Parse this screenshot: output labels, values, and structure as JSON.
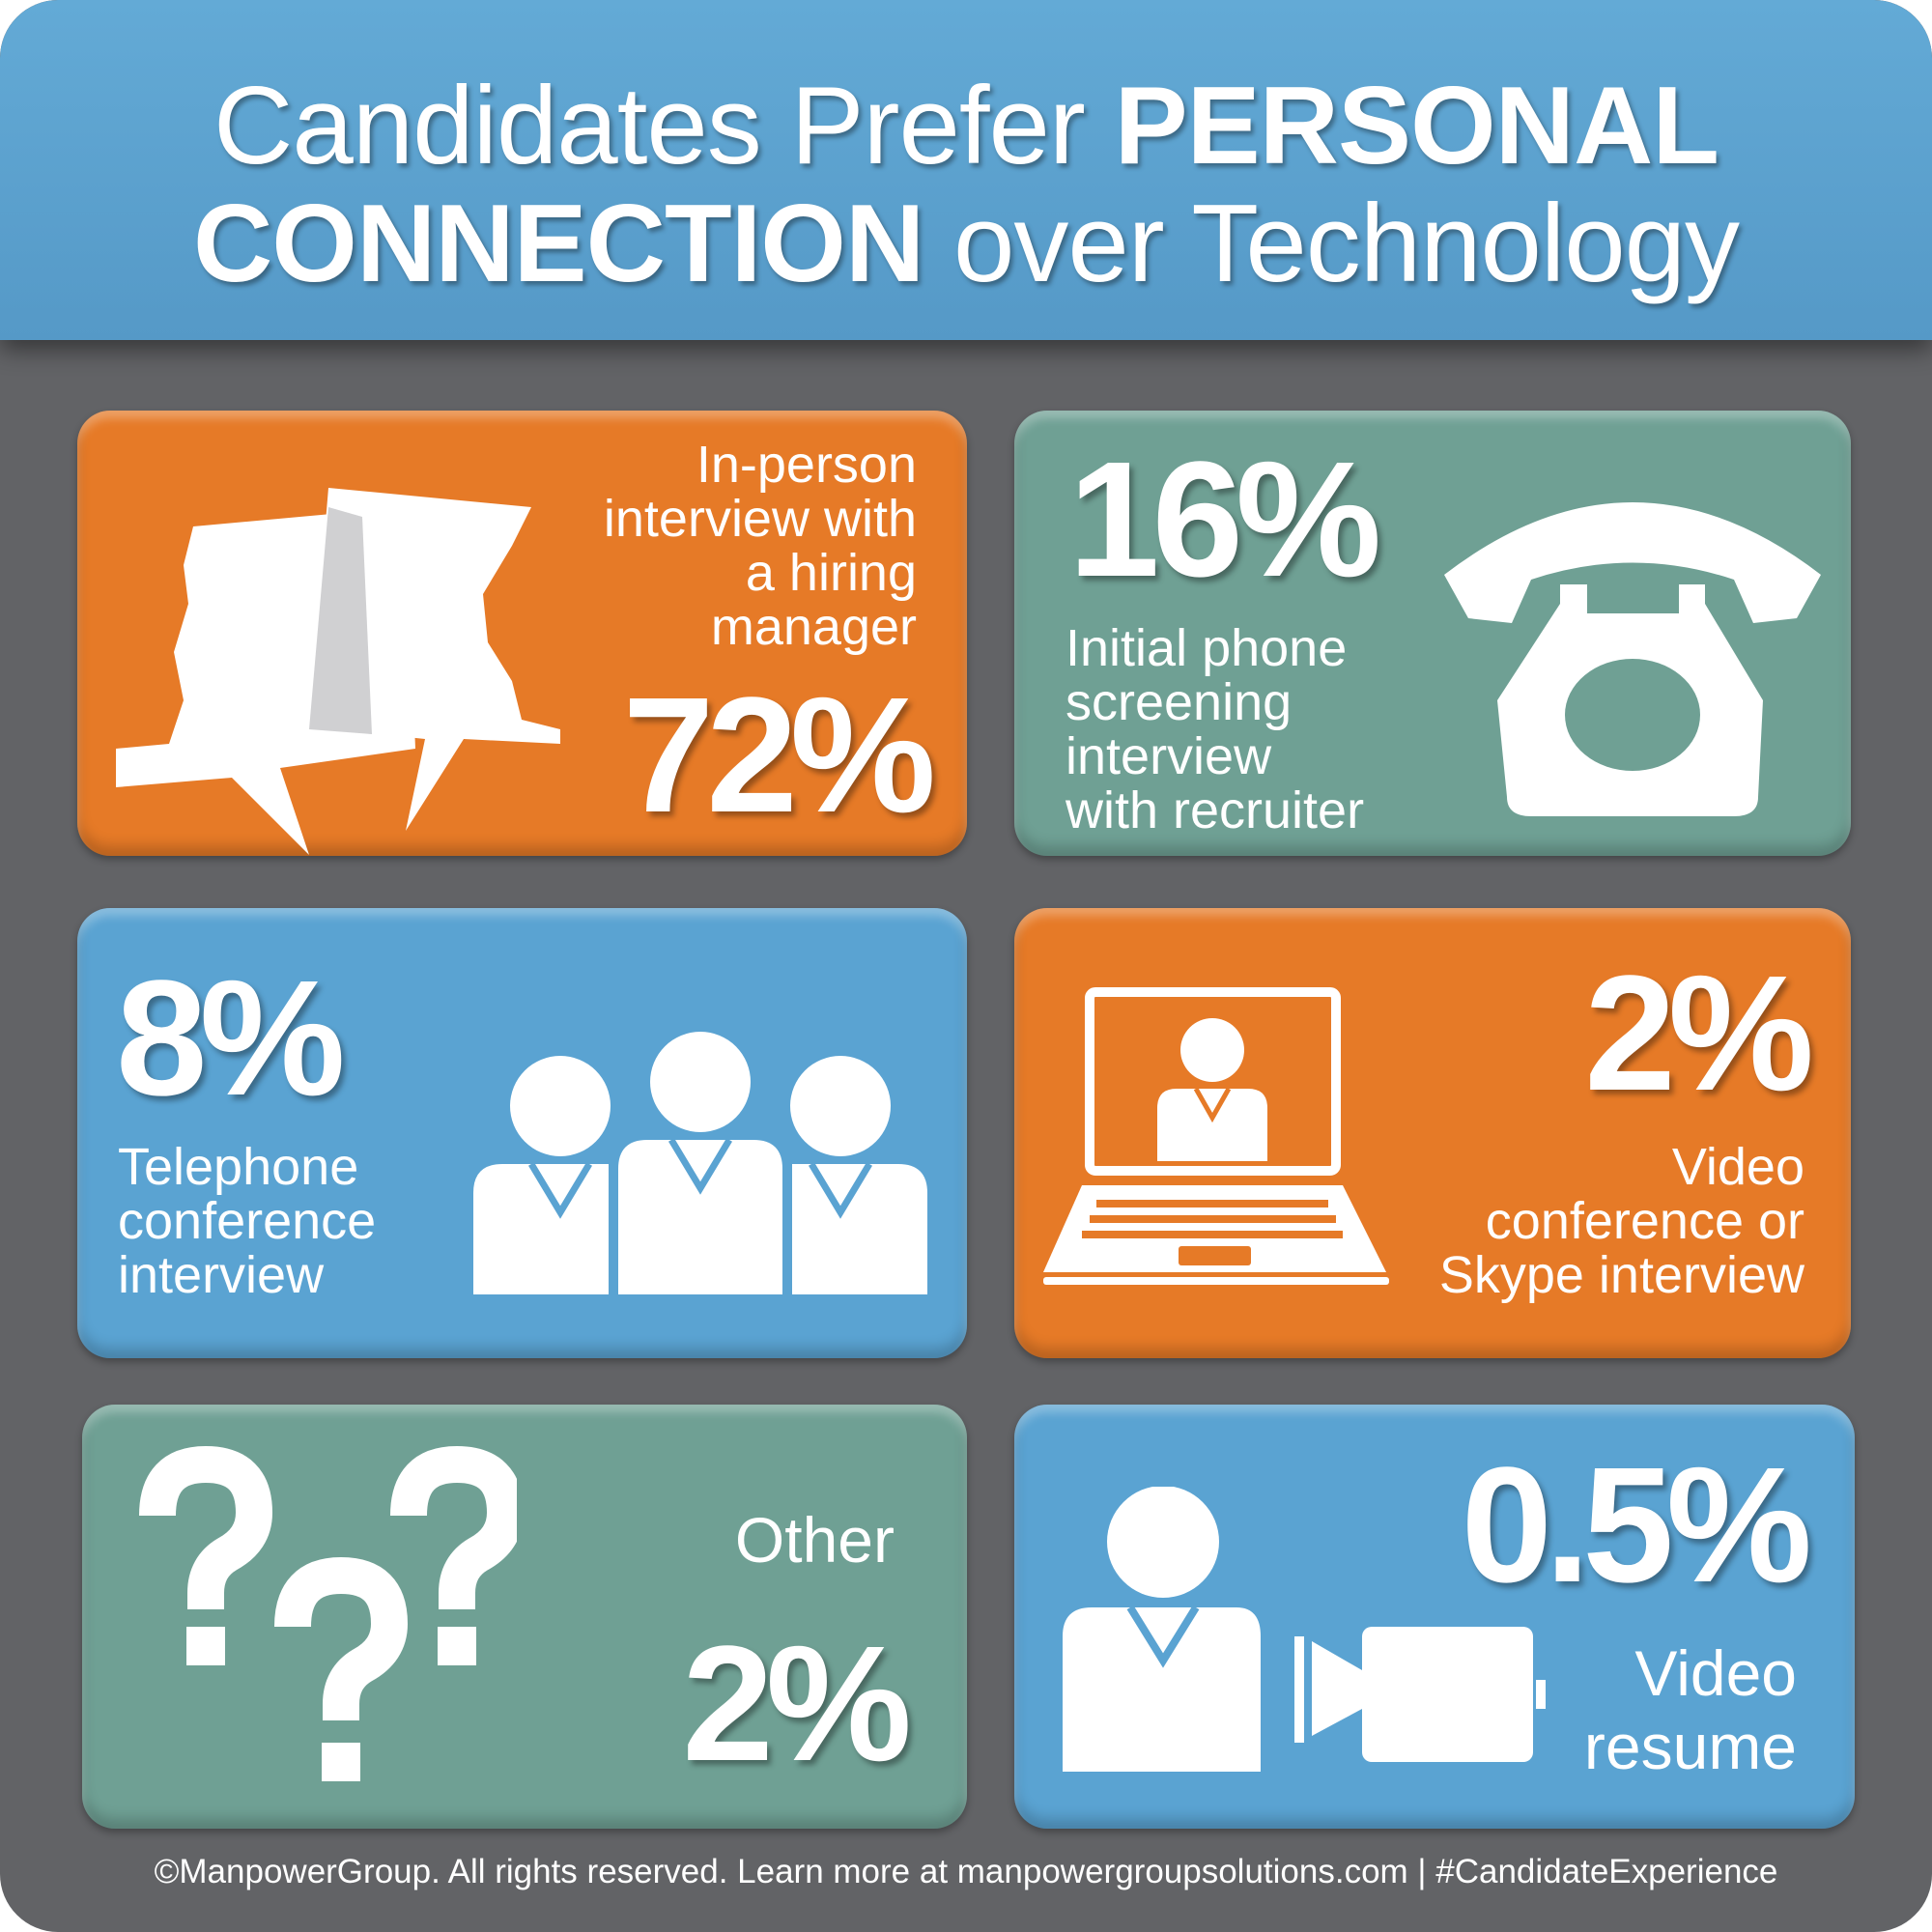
{
  "title": {
    "line1_regular": "Candidates Prefer ",
    "line1_bold": "PERSONAL",
    "line2_bold": "CONNECTION",
    "line2_regular": " over Technology"
  },
  "colors": {
    "orange": "#e67a27",
    "teal": "#6fa094",
    "blue": "#5aa3d2",
    "background": "#626366"
  },
  "tiles": [
    {
      "percent": "72%",
      "label": [
        "In-person",
        "interview with",
        "a hiring",
        "manager"
      ],
      "icon": "speech-bubbles-faces-icon",
      "color": "orange"
    },
    {
      "percent": "16%",
      "label": [
        "Initial phone",
        "screening",
        "interview",
        "with recruiter"
      ],
      "icon": "rotary-telephone-icon",
      "color": "teal"
    },
    {
      "percent": "8%",
      "label": [
        "Telephone",
        "conference",
        "interview"
      ],
      "icon": "group-people-icon",
      "color": "blue"
    },
    {
      "percent": "2%",
      "label": [
        "Video",
        "conference or",
        "Skype interview"
      ],
      "icon": "laptop-video-call-icon",
      "color": "orange"
    },
    {
      "percent": "2%",
      "label": [
        "Other"
      ],
      "icon": "question-marks-icon",
      "color": "teal"
    },
    {
      "percent": "0.5%",
      "label": [
        "Video",
        "resume"
      ],
      "icon": "person-video-camera-icon",
      "color": "blue"
    }
  ],
  "footer": {
    "text": "©ManpowerGroup. All rights reserved. Learn more at ",
    "link": "manpowergroupsolutions.com",
    "separator": " | ",
    "hashtag": "#CandidateExperience"
  }
}
